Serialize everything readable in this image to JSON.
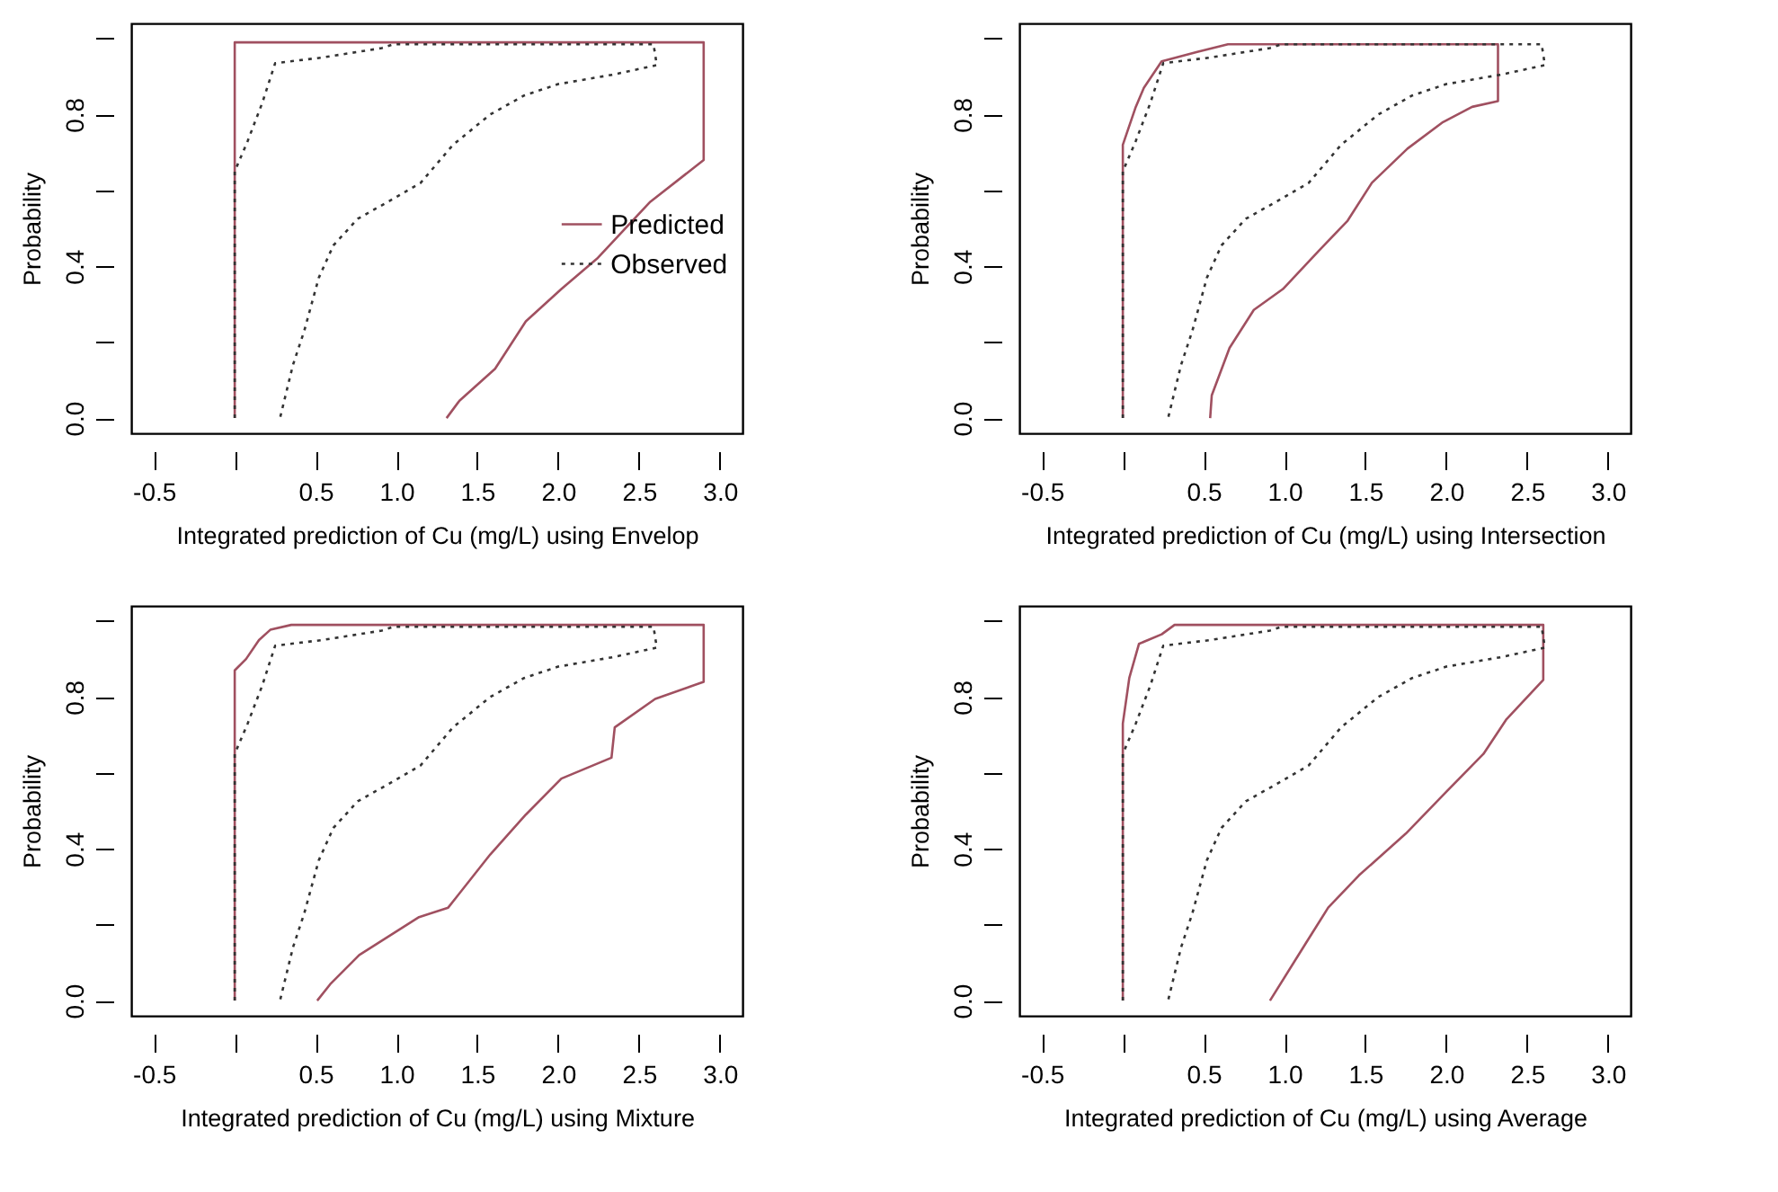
{
  "chart_data": [
    {
      "type": "line",
      "xlabel": "Integrated prediction of Cu (mg/L) using Envelop",
      "ylabel": "Probability",
      "xlim": [
        -0.64,
        3.14
      ],
      "ylim": [
        -0.04,
        1.04
      ],
      "xticks": [
        -0.5,
        {
          "value": 0,
          "label": null
        },
        0.5,
        {
          "value": 1,
          "label": "1.0"
        },
        1.5,
        {
          "value": 2,
          "label": "2.0"
        },
        2.5,
        {
          "value": 3,
          "label": "3.0"
        }
      ],
      "yticks": [
        {
          "value": 0,
          "label": "0.0"
        },
        {
          "value": 0.2,
          "label": null
        },
        {
          "value": 0.4,
          "label": "0.4"
        },
        {
          "value": 0.6,
          "label": null
        },
        {
          "value": 0.8,
          "label": "0.8"
        },
        {
          "value": 1,
          "label": null
        }
      ],
      "grid": false,
      "legend": "right",
      "series": [
        {
          "name": "Predicted",
          "color": "#a05060",
          "line_style": "solid",
          "x": [
            0,
            0,
            2.9,
            2.9,
            2.57,
            2.24,
            2.02,
            1.8,
            1.61,
            1.39,
            1.31
          ],
          "values": [
            0,
            0.99,
            0.99,
            0.68,
            0.57,
            0.42,
            0.34,
            0.255,
            0.13,
            0.046,
            0
          ]
        },
        {
          "name": "Observed",
          "color": "#333333",
          "line_style": "dotted",
          "x": [
            0,
            0,
            0.08,
            0.17,
            0.25,
            0.54,
            0.91,
            0.98,
            2.59,
            2.61,
            2.34,
            2.0,
            1.79,
            1.58,
            1.35,
            1.15,
            0.99,
            0.76,
            0.61,
            0.52,
            0.43,
            0.36,
            0.28
          ],
          "values": [
            0,
            0.65,
            0.73,
            0.83,
            0.935,
            0.95,
            0.975,
            0.985,
            0.985,
            0.93,
            0.905,
            0.88,
            0.85,
            0.8,
            0.72,
            0.62,
            0.58,
            0.525,
            0.455,
            0.37,
            0.23,
            0.14,
            0
          ]
        }
      ]
    },
    {
      "type": "line",
      "xlabel": "Integrated prediction of Cu (mg/L) using Intersection",
      "ylabel": "Probability",
      "xlim": [
        -0.64,
        3.14
      ],
      "ylim": [
        -0.04,
        1.04
      ],
      "xticks": [
        -0.5,
        {
          "value": 0,
          "label": null
        },
        0.5,
        {
          "value": 1,
          "label": "1.0"
        },
        1.5,
        {
          "value": 2,
          "label": "2.0"
        },
        2.5,
        {
          "value": 3,
          "label": "3.0"
        }
      ],
      "yticks": [
        {
          "value": 0,
          "label": "0.0"
        },
        {
          "value": 0.2,
          "label": null
        },
        {
          "value": 0.4,
          "label": "0.4"
        },
        {
          "value": 0.6,
          "label": null
        },
        {
          "value": 0.8,
          "label": "0.8"
        },
        {
          "value": 1,
          "label": null
        }
      ],
      "grid": false,
      "legend": "right",
      "series": [
        {
          "name": "Predicted",
          "color": "#a05060",
          "line_style": "solid",
          "x": [
            0,
            0,
            0.08,
            0.13,
            0.24,
            0.46,
            0.65,
            2.32,
            2.32,
            2.16,
            1.98,
            1.76,
            1.54,
            1.39,
            1.21,
            0.99,
            0.81,
            0.66,
            0.55,
            0.54
          ],
          "values": [
            0,
            0.72,
            0.82,
            0.87,
            0.94,
            0.965,
            0.985,
            0.985,
            0.835,
            0.82,
            0.78,
            0.71,
            0.62,
            0.52,
            0.44,
            0.34,
            0.285,
            0.185,
            0.06,
            0
          ]
        },
        {
          "name": "Observed",
          "color": "#333333",
          "line_style": "dotted",
          "x": [
            0,
            0,
            0.08,
            0.17,
            0.25,
            0.54,
            0.91,
            0.98,
            2.59,
            2.61,
            2.34,
            2.0,
            1.79,
            1.58,
            1.35,
            1.15,
            0.99,
            0.76,
            0.61,
            0.52,
            0.43,
            0.36,
            0.28
          ],
          "values": [
            0,
            0.65,
            0.73,
            0.83,
            0.935,
            0.95,
            0.975,
            0.985,
            0.985,
            0.93,
            0.905,
            0.88,
            0.85,
            0.8,
            0.72,
            0.62,
            0.58,
            0.525,
            0.455,
            0.37,
            0.23,
            0.14,
            0
          ]
        }
      ]
    },
    {
      "type": "line",
      "xlabel": "Integrated prediction of Cu (mg/L) using Mixture",
      "ylabel": "Probability",
      "xlim": [
        -0.64,
        3.14
      ],
      "ylim": [
        -0.04,
        1.04
      ],
      "xticks": [
        -0.5,
        {
          "value": 0,
          "label": null
        },
        0.5,
        {
          "value": 1,
          "label": "1.0"
        },
        1.5,
        {
          "value": 2,
          "label": "2.0"
        },
        2.5,
        {
          "value": 3,
          "label": "3.0"
        }
      ],
      "yticks": [
        {
          "value": 0,
          "label": "0.0"
        },
        {
          "value": 0.2,
          "label": null
        },
        {
          "value": 0.4,
          "label": "0.4"
        },
        {
          "value": 0.6,
          "label": null
        },
        {
          "value": 0.8,
          "label": "0.8"
        },
        {
          "value": 1,
          "label": null
        }
      ],
      "grid": false,
      "legend": "right",
      "series": [
        {
          "name": "Predicted",
          "color": "#a05060",
          "line_style": "solid",
          "x": [
            0,
            0,
            0.07,
            0.15,
            0.22,
            0.35,
            2.9,
            2.9,
            2.6,
            2.35,
            2.33,
            2.02,
            1.8,
            1.58,
            1.32,
            1.14,
            0.77,
            0.59,
            0.51
          ],
          "values": [
            0,
            0.87,
            0.9,
            0.95,
            0.977,
            0.99,
            0.99,
            0.84,
            0.795,
            0.72,
            0.64,
            0.585,
            0.49,
            0.385,
            0.245,
            0.22,
            0.12,
            0.043,
            0
          ]
        },
        {
          "name": "Observed",
          "color": "#333333",
          "line_style": "dotted",
          "x": [
            0,
            0,
            0.08,
            0.17,
            0.25,
            0.54,
            0.91,
            0.98,
            2.59,
            2.61,
            2.34,
            2.0,
            1.79,
            1.58,
            1.35,
            1.15,
            0.99,
            0.76,
            0.61,
            0.52,
            0.43,
            0.36,
            0.28
          ],
          "values": [
            0,
            0.65,
            0.73,
            0.83,
            0.935,
            0.95,
            0.975,
            0.985,
            0.985,
            0.93,
            0.905,
            0.88,
            0.85,
            0.8,
            0.72,
            0.62,
            0.58,
            0.525,
            0.455,
            0.37,
            0.23,
            0.14,
            0
          ]
        }
      ]
    },
    {
      "type": "line",
      "xlabel": "Integrated prediction of Cu (mg/L) using Average",
      "ylabel": "Probability",
      "xlim": [
        -0.64,
        3.14
      ],
      "ylim": [
        -0.04,
        1.04
      ],
      "xticks": [
        -0.5,
        {
          "value": 0,
          "label": null
        },
        0.5,
        {
          "value": 1,
          "label": "1.0"
        },
        1.5,
        {
          "value": 2,
          "label": "2.0"
        },
        2.5,
        {
          "value": 3,
          "label": "3.0"
        }
      ],
      "yticks": [
        {
          "value": 0,
          "label": "0.0"
        },
        {
          "value": 0.2,
          "label": null
        },
        {
          "value": 0.4,
          "label": "0.4"
        },
        {
          "value": 0.6,
          "label": null
        },
        {
          "value": 0.8,
          "label": "0.8"
        },
        {
          "value": 1,
          "label": null
        }
      ],
      "grid": false,
      "legend": "right",
      "series": [
        {
          "name": "Predicted",
          "color": "#a05060",
          "line_style": "solid",
          "x": [
            0,
            0,
            0.04,
            0.1,
            0.24,
            0.32,
            2.6,
            2.6,
            2.37,
            2.23,
            2.0,
            1.75,
            1.46,
            1.27,
            1.13,
            0.91
          ],
          "values": [
            0,
            0.73,
            0.85,
            0.94,
            0.965,
            0.99,
            0.99,
            0.845,
            0.74,
            0.65,
            0.55,
            0.44,
            0.33,
            0.245,
            0.15,
            0
          ]
        },
        {
          "name": "Observed",
          "color": "#333333",
          "line_style": "dotted",
          "x": [
            0,
            0,
            0.08,
            0.17,
            0.25,
            0.54,
            0.91,
            0.98,
            2.59,
            2.61,
            2.34,
            2.0,
            1.79,
            1.58,
            1.35,
            1.15,
            0.99,
            0.76,
            0.61,
            0.52,
            0.43,
            0.36,
            0.28
          ],
          "values": [
            0,
            0.65,
            0.73,
            0.83,
            0.935,
            0.95,
            0.975,
            0.985,
            0.985,
            0.93,
            0.905,
            0.88,
            0.85,
            0.8,
            0.72,
            0.62,
            0.58,
            0.525,
            0.455,
            0.37,
            0.23,
            0.14,
            0
          ]
        }
      ]
    }
  ]
}
